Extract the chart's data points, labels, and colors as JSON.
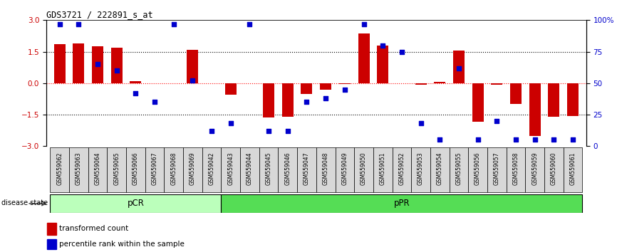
{
  "title": "GDS3721 / 222891_s_at",
  "samples": [
    "GSM559062",
    "GSM559063",
    "GSM559064",
    "GSM559065",
    "GSM559066",
    "GSM559067",
    "GSM559068",
    "GSM559069",
    "GSM559042",
    "GSM559043",
    "GSM559044",
    "GSM559045",
    "GSM559046",
    "GSM559047",
    "GSM559048",
    "GSM559049",
    "GSM559050",
    "GSM559051",
    "GSM559052",
    "GSM559053",
    "GSM559054",
    "GSM559055",
    "GSM559056",
    "GSM559057",
    "GSM559058",
    "GSM559059",
    "GSM559060",
    "GSM559061"
  ],
  "transformed_count": [
    1.85,
    1.9,
    1.75,
    1.7,
    0.1,
    0.0,
    0.0,
    1.6,
    0.0,
    -0.55,
    0.0,
    -1.65,
    -1.6,
    -0.5,
    -0.3,
    -0.05,
    2.35,
    1.8,
    0.0,
    -0.08,
    0.05,
    1.55,
    -1.85,
    -0.07,
    -1.0,
    -2.5,
    -1.6,
    -1.55
  ],
  "percentile_rank": [
    97,
    97,
    65,
    60,
    42,
    35,
    97,
    52,
    12,
    18,
    97,
    12,
    12,
    35,
    38,
    45,
    97,
    80,
    75,
    18,
    5,
    62,
    5,
    20,
    5,
    5,
    5,
    5
  ],
  "pCR_count": 9,
  "pPR_count": 19,
  "bar_color": "#cc0000",
  "dot_color": "#0000cc",
  "pCR_color": "#bbffbb",
  "pPR_color": "#55dd55",
  "ylim": [
    -3,
    3
  ],
  "yticks_left": [
    -3,
    -1.5,
    0,
    1.5,
    3
  ],
  "yticks_right": [
    0,
    25,
    50,
    75,
    100
  ],
  "legend_bar_label": "transformed count",
  "legend_dot_label": "percentile rank within the sample"
}
